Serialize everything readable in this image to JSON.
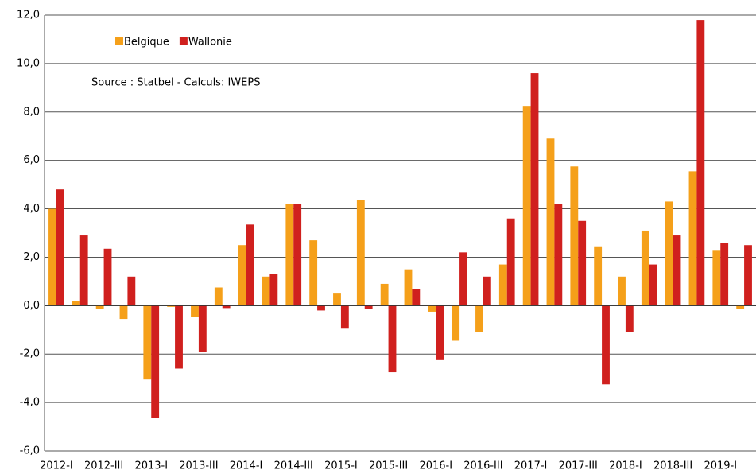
{
  "chart_data": {
    "type": "bar",
    "annotation": "Source : Statbel - Calculs: IWEPS",
    "categories": [
      "2012-I",
      null,
      "2012-III",
      null,
      "2013-I",
      null,
      "2013-III",
      null,
      "2014-I",
      null,
      "2014-III",
      null,
      "2015-I",
      null,
      "2015-III",
      null,
      "2016-I",
      null,
      "2016-III",
      null,
      "2017-I",
      null,
      "2017-III",
      null,
      "2018-I",
      null,
      "2018-III",
      null,
      "2019-I",
      null
    ],
    "series": [
      {
        "name": "Belgique",
        "color": "#f5a01a",
        "values": [
          4.0,
          0.2,
          -0.15,
          -0.55,
          -3.05,
          -0.05,
          -0.45,
          0.75,
          2.5,
          1.2,
          4.2,
          2.7,
          0.5,
          4.35,
          0.9,
          1.5,
          -0.25,
          -1.45,
          -1.1,
          1.7,
          8.25,
          6.9,
          5.75,
          2.45,
          1.2,
          3.1,
          4.3,
          5.55,
          2.3,
          -0.15
        ]
      },
      {
        "name": "Wallonie",
        "color": "#d0201e",
        "values": [
          4.8,
          2.9,
          2.35,
          1.2,
          -4.65,
          -2.6,
          -1.9,
          -0.1,
          3.35,
          1.3,
          4.2,
          -0.2,
          -0.95,
          -0.15,
          -2.75,
          0.7,
          -2.25,
          2.2,
          1.2,
          3.6,
          9.6,
          4.2,
          3.5,
          -3.25,
          -1.1,
          1.7,
          2.9,
          11.8,
          2.6,
          2.5
        ]
      }
    ],
    "ylim": [
      -6,
      12
    ],
    "yticks": [
      {
        "value": -6,
        "label": "-6,0"
      },
      {
        "value": -4,
        "label": "-4,0"
      },
      {
        "value": -2,
        "label": "-2,0"
      },
      {
        "value": 0,
        "label": "0,0"
      },
      {
        "value": 2,
        "label": "2,0"
      },
      {
        "value": 4,
        "label": "4,0"
      },
      {
        "value": 6,
        "label": "6,0"
      },
      {
        "value": 8,
        "label": "8,0"
      },
      {
        "value": 10,
        "label": "10,0"
      },
      {
        "value": 12,
        "label": "12,0"
      }
    ],
    "grid": true,
    "legend": "top-left"
  }
}
